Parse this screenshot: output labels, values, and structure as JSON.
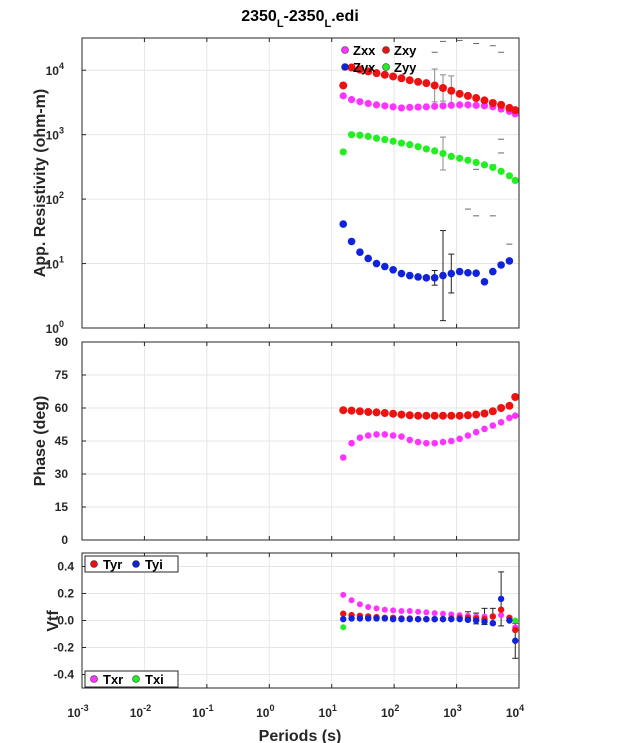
{
  "figure": {
    "title_main": "2350",
    "title_sub1": "L",
    "title_mid": "-2350",
    "title_sub2": "L",
    "title_end": ".edi"
  },
  "chart_data": [
    {
      "type": "scatter",
      "panel": "apparent-resistivity",
      "ylabel": "App. Resistivity (ohm-m)",
      "xlabel": "",
      "xscale": "log",
      "yscale": "log",
      "xlim": [
        0.001,
        10000
      ],
      "ylim": [
        1,
        31623
      ],
      "yticks": [
        {
          "v": 1,
          "base": "10",
          "exp": "0"
        },
        {
          "v": 10,
          "base": "10",
          "exp": "1"
        },
        {
          "v": 100,
          "base": "10",
          "exp": "2"
        },
        {
          "v": 1000,
          "base": "10",
          "exp": "3"
        },
        {
          "v": 10000,
          "base": "10",
          "exp": "4"
        }
      ],
      "grid": true,
      "legend": "top-center",
      "colors": {
        "Zxx": "#ff33ff",
        "Zxy": "#ee1111",
        "Zyx": "#1122dd",
        "Zyy": "#22ee22"
      },
      "series": [
        {
          "name": "Zxx",
          "x": [
            15.3,
            20.8,
            28.3,
            38.4,
            52.2,
            70.9,
            96.3,
            131,
            178,
            242,
            328,
            446,
            606,
            823,
            1120,
            1520,
            2060,
            2800,
            3810,
            5170,
            7020,
            8710
          ],
          "y": [
            4000,
            3500,
            3250,
            3050,
            2900,
            2800,
            2700,
            2600,
            2650,
            2680,
            2700,
            2750,
            2800,
            2850,
            2900,
            2900,
            2850,
            2800,
            2700,
            2500,
            2300,
            2100
          ]
        },
        {
          "name": "Zxy",
          "x": [
            15.3,
            20.8,
            28.3,
            38.4,
            52.2,
            70.9,
            96.3,
            131,
            178,
            242,
            328,
            446,
            606,
            823,
            1120,
            1520,
            2060,
            2800,
            3810,
            5170,
            7020,
            8710
          ],
          "y": [
            5800,
            11000,
            10200,
            9600,
            9000,
            8500,
            8000,
            7500,
            7000,
            6600,
            6300,
            5800,
            5300,
            4800,
            4300,
            4000,
            3700,
            3400,
            3100,
            2900,
            2600,
            2400
          ]
        },
        {
          "name": "Zyx",
          "x": [
            15.3,
            20.8,
            28.3,
            38.4,
            52.2,
            70.9,
            96.3,
            131,
            178,
            242,
            328,
            446,
            606,
            823,
            1120,
            1520,
            2060,
            2800,
            3810,
            5170,
            7020
          ],
          "y": [
            41,
            22,
            15,
            12,
            10,
            9,
            8,
            7,
            6.5,
            6.2,
            6,
            6,
            6.5,
            7,
            7.5,
            7.2,
            7.1,
            5.2,
            7.5,
            9.5,
            11
          ]
        },
        {
          "name": "Zyy",
          "x": [
            15.3,
            20.8,
            28.3,
            38.4,
            52.2,
            70.9,
            96.3,
            131,
            178,
            242,
            328,
            446,
            606,
            823,
            1120,
            1520,
            2060,
            2800,
            3810,
            5170,
            7020,
            8710
          ],
          "y": [
            540,
            1000,
            980,
            940,
            880,
            840,
            790,
            740,
            700,
            650,
            600,
            560,
            510,
            460,
            430,
            400,
            370,
            340,
            310,
            270,
            230,
            195
          ]
        }
      ]
    },
    {
      "type": "scatter",
      "panel": "phase",
      "ylabel": "Phase (deg)",
      "xlabel": "",
      "xscale": "log",
      "xlim": [
        0.001,
        10000
      ],
      "ylim": [
        0,
        90
      ],
      "yticks": [
        0,
        15,
        30,
        45,
        60,
        75,
        90
      ],
      "grid": true,
      "series": [
        {
          "name": "Zxx",
          "x": [
            15.3,
            20.8,
            28.3,
            38.4,
            52.2,
            70.9,
            96.3,
            131,
            178,
            242,
            328,
            446,
            606,
            823,
            1120,
            1520,
            2060,
            2800,
            3810,
            5170,
            7020,
            8710
          ],
          "y": [
            37.5,
            44,
            46.5,
            47.5,
            48,
            48,
            47.5,
            47,
            45.5,
            44.5,
            44,
            44,
            44.5,
            45,
            46,
            47.5,
            49,
            50.5,
            52,
            53.5,
            55.5,
            56.5
          ]
        },
        {
          "name": "Zxy",
          "x": [
            15.3,
            20.8,
            28.3,
            38.4,
            52.2,
            70.9,
            96.3,
            131,
            178,
            242,
            328,
            446,
            606,
            823,
            1120,
            1520,
            2060,
            2800,
            3810,
            5170,
            7020,
            8710
          ],
          "y": [
            59,
            58.8,
            58.5,
            58.2,
            58,
            57.7,
            57.4,
            57,
            56.7,
            56.5,
            56.5,
            56.5,
            56.5,
            56.5,
            56.5,
            56.7,
            57,
            57.5,
            58.5,
            60,
            61,
            65
          ]
        }
      ]
    },
    {
      "type": "scatter",
      "panel": "tipper",
      "ylabel": "Vtf",
      "xlabel": "Periods (s)",
      "xscale": "log",
      "xlim": [
        0.001,
        10000
      ],
      "xticks": [
        {
          "v": 0.001,
          "base": "10",
          "exp": "-3"
        },
        {
          "v": 0.01,
          "base": "10",
          "exp": "-2"
        },
        {
          "v": 0.1,
          "base": "10",
          "exp": "-1"
        },
        {
          "v": 1,
          "base": "10",
          "exp": "0"
        },
        {
          "v": 10,
          "base": "10",
          "exp": "1"
        },
        {
          "v": 100,
          "base": "10",
          "exp": "2"
        },
        {
          "v": 1000,
          "base": "10",
          "exp": "3"
        },
        {
          "v": 10000,
          "base": "10",
          "exp": "4"
        }
      ],
      "ylim": [
        -0.5,
        0.5
      ],
      "yticks": [
        "-0.4",
        "-0.2",
        "0.0",
        "0.2",
        "0.4"
      ],
      "grid": true,
      "colors": {
        "Tyr": "#ee1111",
        "Tyi": "#1122dd",
        "Txr": "#ff33ff",
        "Txi": "#22ee22"
      },
      "series": [
        {
          "name": "Txr",
          "x": [
            15.3,
            20.8,
            28.3,
            38.4,
            52.2,
            70.9,
            96.3,
            131,
            178,
            242,
            328,
            446,
            606,
            823,
            1120,
            1520,
            2060,
            2800,
            3810,
            5170,
            7020,
            8710
          ],
          "y": [
            0.19,
            0.15,
            0.12,
            0.1,
            0.09,
            0.08,
            0.075,
            0.07,
            0.07,
            0.065,
            0.06,
            0.055,
            0.05,
            0.045,
            0.04,
            0.035,
            0.03,
            0.03,
            0.03,
            0.04,
            0.02,
            -0.05
          ]
        },
        {
          "name": "Tyr",
          "x": [
            15.3,
            20.8,
            28.3,
            38.4,
            52.2,
            70.9,
            96.3,
            131,
            178,
            242,
            328,
            446,
            606,
            823,
            1120,
            1520,
            2060,
            2800,
            3810,
            5170,
            7020,
            8710
          ],
          "y": [
            0.05,
            0.04,
            0.035,
            0.03,
            0.025,
            0.02,
            0.02,
            0.015,
            0.015,
            0.01,
            0.01,
            0.01,
            0.01,
            0.015,
            0.02,
            0.02,
            0.015,
            0.01,
            0.03,
            0.08,
            0.02,
            -0.07
          ]
        },
        {
          "name": "Tyi",
          "x": [
            15.3,
            20.8,
            28.3,
            38.4,
            52.2,
            70.9,
            96.3,
            131,
            178,
            242,
            328,
            446,
            606,
            823,
            1120,
            1520,
            2060,
            2800,
            3810,
            5170,
            7020,
            8710
          ],
          "y": [
            0.01,
            0.015,
            0.015,
            0.015,
            0.015,
            0.015,
            0.01,
            0.01,
            0.01,
            0.01,
            0.01,
            0.01,
            0.01,
            0.01,
            0.01,
            0.005,
            0.0,
            -0.01,
            -0.02,
            0.16,
            0.0,
            -0.15
          ]
        },
        {
          "name": "Txi",
          "x": [
            15.3,
            8710
          ],
          "y": [
            -0.05,
            0.0
          ]
        }
      ]
    }
  ]
}
